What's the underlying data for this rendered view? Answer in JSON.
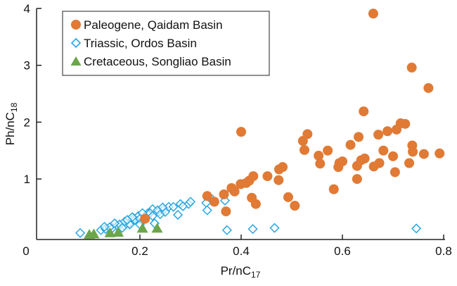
{
  "chart_data": {
    "type": "scatter",
    "xlabel": "Pr/nC",
    "xlabel_sub": "17",
    "ylabel": "Ph/nC",
    "ylabel_sub": "18",
    "xlim": [
      0,
      0.8
    ],
    "ylim": [
      -0.06,
      4
    ],
    "xticks": [
      "0",
      "0.2",
      "0.4",
      "0.6",
      "0.8"
    ],
    "xtick_values": [
      0,
      0.2,
      0.4,
      0.6,
      0.8
    ],
    "yticks": [
      "1",
      "2",
      "3",
      "4"
    ],
    "ytick_values": [
      1,
      2,
      3,
      4
    ],
    "grid": false,
    "legend_position": "top-left",
    "series": [
      {
        "name": "Paleogene, Qaidam Basin",
        "marker": "circle",
        "color": "#E07A35",
        "points": [
          [
            0.661,
            3.91
          ],
          [
            0.737,
            2.96
          ],
          [
            0.77,
            2.6
          ],
          [
            0.642,
            2.19
          ],
          [
            0.4,
            1.83
          ],
          [
            0.531,
            1.79
          ],
          [
            0.522,
            1.67
          ],
          [
            0.525,
            1.51
          ],
          [
            0.553,
            1.41
          ],
          [
            0.571,
            1.5
          ],
          [
            0.556,
            1.27
          ],
          [
            0.594,
            1.28
          ],
          [
            0.6,
            1.31
          ],
          [
            0.592,
            1.21
          ],
          [
            0.616,
            1.6
          ],
          [
            0.632,
            1.74
          ],
          [
            0.671,
            1.78
          ],
          [
            0.689,
            1.84
          ],
          [
            0.707,
            1.87
          ],
          [
            0.715,
            1.98
          ],
          [
            0.724,
            1.97
          ],
          [
            0.738,
            1.59
          ],
          [
            0.739,
            1.48
          ],
          [
            0.761,
            1.44
          ],
          [
            0.792,
            1.45
          ],
          [
            0.681,
            1.5
          ],
          [
            0.7,
            1.4
          ],
          [
            0.732,
            1.28
          ],
          [
            0.704,
            1.12
          ],
          [
            0.644,
            1.36
          ],
          [
            0.637,
            1.33
          ],
          [
            0.629,
            1.23
          ],
          [
            0.673,
            1.28
          ],
          [
            0.662,
            1.22
          ],
          [
            0.629,
            1.0
          ],
          [
            0.583,
            0.82
          ],
          [
            0.482,
            1.21
          ],
          [
            0.475,
            1.17
          ],
          [
            0.474,
            0.98
          ],
          [
            0.452,
            1.05
          ],
          [
            0.424,
            1.05
          ],
          [
            0.416,
            0.97
          ],
          [
            0.41,
            0.93
          ],
          [
            0.399,
            0.91
          ],
          [
            0.387,
            0.78
          ],
          [
            0.381,
            0.84
          ],
          [
            0.366,
            0.73
          ],
          [
            0.421,
            0.67
          ],
          [
            0.429,
            0.56
          ],
          [
            0.493,
            0.68
          ],
          [
            0.506,
            0.53
          ],
          [
            0.37,
            0.43
          ],
          [
            0.347,
            0.6
          ],
          [
            0.333,
            0.7
          ],
          [
            0.21,
            0.3
          ]
        ]
      },
      {
        "name": "Triassic, Ordos Basin",
        "marker": "diamond",
        "color": "#29A6E0",
        "points": [
          [
            0.082,
            0.05
          ],
          [
            0.123,
            0.1
          ],
          [
            0.132,
            0.12
          ],
          [
            0.146,
            0.14
          ],
          [
            0.155,
            0.18
          ],
          [
            0.169,
            0.18
          ],
          [
            0.178,
            0.22
          ],
          [
            0.188,
            0.31
          ],
          [
            0.197,
            0.35
          ],
          [
            0.206,
            0.27
          ],
          [
            0.215,
            0.39
          ],
          [
            0.225,
            0.47
          ],
          [
            0.229,
            0.22
          ],
          [
            0.238,
            0.43
          ],
          [
            0.248,
            0.47
          ],
          [
            0.257,
            0.51
          ],
          [
            0.266,
            0.51
          ],
          [
            0.275,
            0.37
          ],
          [
            0.28,
            0.56
          ],
          [
            0.296,
            0.56
          ],
          [
            0.331,
            0.58
          ],
          [
            0.333,
            0.45
          ],
          [
            0.343,
            0.64
          ],
          [
            0.368,
            0.62
          ],
          [
            0.372,
            0.1
          ],
          [
            0.423,
            0.12
          ],
          [
            0.466,
            0.14
          ],
          [
            0.746,
            0.13
          ],
          [
            0.14,
            0.15
          ],
          [
            0.16,
            0.2
          ],
          [
            0.17,
            0.25
          ],
          [
            0.19,
            0.28
          ],
          [
            0.2,
            0.3
          ],
          [
            0.21,
            0.33
          ],
          [
            0.22,
            0.4
          ],
          [
            0.235,
            0.45
          ],
          [
            0.24,
            0.38
          ],
          [
            0.25,
            0.42
          ],
          [
            0.18,
            0.2
          ],
          [
            0.15,
            0.22
          ],
          [
            0.13,
            0.16
          ],
          [
            0.2,
            0.2
          ],
          [
            0.185,
            0.33
          ],
          [
            0.225,
            0.35
          ],
          [
            0.165,
            0.14
          ],
          [
            0.245,
            0.5
          ],
          [
            0.205,
            0.4
          ],
          [
            0.175,
            0.28
          ],
          [
            0.3,
            0.6
          ],
          [
            0.285,
            0.52
          ]
        ]
      },
      {
        "name": "Cretaceous, Songliao Basin",
        "marker": "triangle",
        "color": "#6BA64A",
        "points": [
          [
            0.1,
            0.02
          ],
          [
            0.109,
            0.03
          ],
          [
            0.141,
            0.05
          ],
          [
            0.157,
            0.06
          ],
          [
            0.205,
            0.13
          ],
          [
            0.234,
            0.13
          ]
        ]
      }
    ]
  }
}
